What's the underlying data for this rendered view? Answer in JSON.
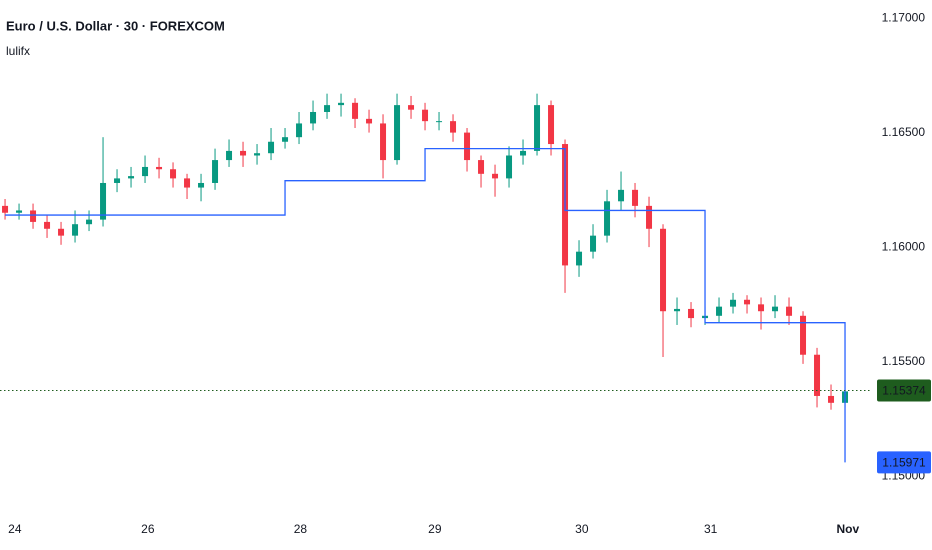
{
  "chart_data": {
    "type": "candlestick",
    "title": "Euro / U.S. Dollar · 30 · FOREXCOM",
    "subtitle": "lulifx",
    "up_color": "#089981",
    "down_color": "#f23645",
    "ylim": [
      1.14852,
      1.17079
    ],
    "yticks": [
      {
        "value": 1.17,
        "label": "1.17000"
      },
      {
        "value": 1.165,
        "label": "1.16500"
      },
      {
        "value": 1.16,
        "label": "1.16000"
      },
      {
        "value": 1.155,
        "label": "1.15500"
      },
      {
        "value": 1.15,
        "label": "1.15000"
      }
    ],
    "xlim": [
      -0.36,
      61.07
    ],
    "xticks": [
      {
        "value": 0.7,
        "label": "24"
      },
      {
        "value": 10.2,
        "label": "26"
      },
      {
        "value": 21.1,
        "label": "28"
      },
      {
        "value": 30.7,
        "label": "29"
      },
      {
        "value": 41.2,
        "label": "30"
      },
      {
        "value": 50.4,
        "label": "31"
      },
      {
        "value": 60.2,
        "label": "Nov"
      }
    ],
    "open": [
      1.1618,
      1.1615,
      1.1616,
      1.1611,
      1.1608,
      1.1605,
      1.161,
      1.1612,
      1.1628,
      1.163,
      1.1631,
      1.1635,
      1.1634,
      1.163,
      1.1626,
      1.1628,
      1.1638,
      1.1642,
      1.164,
      1.1641,
      1.1646,
      1.1648,
      1.1654,
      1.1659,
      1.1662,
      1.1663,
      1.1656,
      1.1654,
      1.1638,
      1.1662,
      1.166,
      1.1655,
      1.1655,
      1.165,
      1.1638,
      1.1632,
      1.163,
      1.164,
      1.1642,
      1.1662,
      1.1645,
      1.1592,
      1.1598,
      1.1605,
      1.162,
      1.1625,
      1.1618,
      1.1608,
      1.1572,
      1.1573,
      1.1569,
      1.157,
      1.1574,
      1.1577,
      1.1575,
      1.1572,
      1.1574,
      1.157,
      1.1553,
      1.1535,
      1.1532
    ],
    "high": [
      1.1621,
      1.1619,
      1.1619,
      1.1614,
      1.1611,
      1.1616,
      1.1616,
      1.1648,
      1.1634,
      1.1635,
      1.164,
      1.1639,
      1.1637,
      1.1632,
      1.1632,
      1.1643,
      1.1647,
      1.1646,
      1.1645,
      1.1652,
      1.1652,
      1.1659,
      1.1664,
      1.1667,
      1.1667,
      1.1665,
      1.166,
      1.1658,
      1.1667,
      1.1666,
      1.1663,
      1.1659,
      1.1658,
      1.1652,
      1.164,
      1.1636,
      1.1644,
      1.1647,
      1.1667,
      1.1664,
      1.1647,
      1.1603,
      1.161,
      1.1625,
      1.1633,
      1.1628,
      1.1622,
      1.161,
      1.1578,
      1.1576,
      1.1574,
      1.1578,
      1.158,
      1.1579,
      1.1578,
      1.1579,
      1.1578,
      1.1572,
      1.1556,
      1.154,
      1.1541
    ],
    "low": [
      1.1612,
      1.1612,
      1.1608,
      1.1604,
      1.1601,
      1.1602,
      1.1607,
      1.1609,
      1.1624,
      1.1626,
      1.1628,
      1.163,
      1.1626,
      1.1621,
      1.162,
      1.1625,
      1.1635,
      1.1635,
      1.1636,
      1.1638,
      1.1643,
      1.1645,
      1.1651,
      1.1656,
      1.1657,
      1.1652,
      1.165,
      1.163,
      1.1636,
      1.1656,
      1.1651,
      1.1651,
      1.1646,
      1.1633,
      1.1626,
      1.1622,
      1.1626,
      1.1636,
      1.164,
      1.164,
      1.158,
      1.1587,
      1.1595,
      1.1602,
      1.1616,
      1.1613,
      1.16,
      1.1552,
      1.1566,
      1.1565,
      1.1566,
      1.1567,
      1.1571,
      1.1571,
      1.1564,
      1.1569,
      1.1566,
      1.1549,
      1.153,
      1.1529,
      1.153
    ],
    "close": [
      1.1615,
      1.1616,
      1.1611,
      1.1608,
      1.1605,
      1.161,
      1.1612,
      1.1628,
      1.163,
      1.1631,
      1.1635,
      1.1634,
      1.163,
      1.1626,
      1.1628,
      1.1638,
      1.1642,
      1.164,
      1.1641,
      1.1646,
      1.1648,
      1.1654,
      1.1659,
      1.1662,
      1.1663,
      1.1656,
      1.1654,
      1.1638,
      1.1662,
      1.166,
      1.1655,
      1.1655,
      1.165,
      1.1638,
      1.1632,
      1.163,
      1.164,
      1.1642,
      1.1662,
      1.1645,
      1.1592,
      1.1598,
      1.1605,
      1.162,
      1.1625,
      1.1618,
      1.1608,
      1.1572,
      1.1573,
      1.1569,
      1.157,
      1.1574,
      1.1577,
      1.1575,
      1.1572,
      1.1574,
      1.157,
      1.1553,
      1.1535,
      1.1532,
      1.1537
    ],
    "indicator": {
      "color": "#2962ff",
      "x": [
        0,
        20,
        20,
        30,
        30,
        40,
        40,
        50,
        50,
        60,
        60
      ],
      "values": [
        1.1614,
        1.1614,
        1.1629,
        1.1629,
        1.1643,
        1.1643,
        1.1616,
        1.1616,
        1.1567,
        1.1567,
        1.1506
      ],
      "label": "1.15971"
    },
    "last_price": {
      "value": 1.15374,
      "label": "1.15374",
      "color": "#1e5c1e"
    }
  }
}
